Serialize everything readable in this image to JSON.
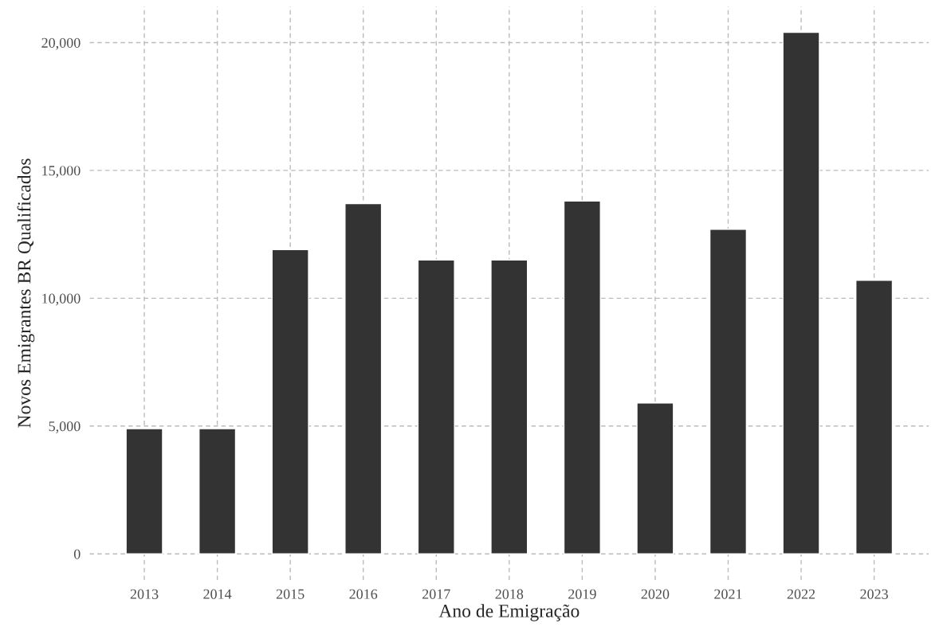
{
  "chart_data": {
    "type": "bar",
    "xlabel": "Ano de Emigração",
    "ylabel": "Novos Emigrantes BR Qualificados",
    "categories": [
      "2013",
      "2014",
      "2015",
      "2016",
      "2017",
      "2018",
      "2019",
      "2020",
      "2021",
      "2022",
      "2023"
    ],
    "values": [
      4900,
      4900,
      11900,
      13700,
      11500,
      11500,
      13800,
      5900,
      12700,
      20400,
      10700
    ],
    "color": "#333333",
    "ylim": [
      -1020,
      21420
    ],
    "yticks": [
      0,
      {
        "value": 5000,
        "label": "5,000"
      },
      {
        "value": 10000,
        "label": "10,000"
      },
      {
        "value": 15000,
        "label": "15,000"
      },
      {
        "value": 20000,
        "label": "20,000"
      }
    ],
    "grid": true,
    "legend": false
  }
}
